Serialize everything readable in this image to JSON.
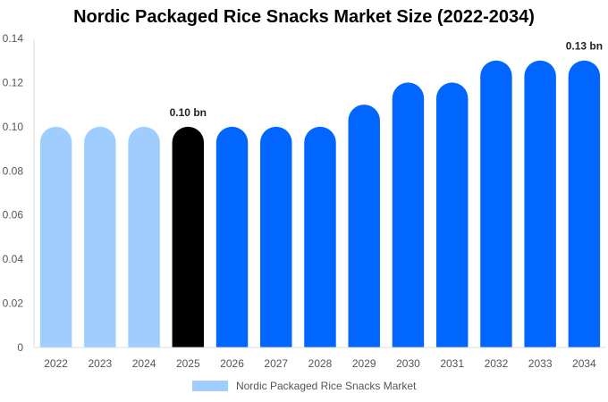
{
  "chart_data": {
    "type": "bar",
    "title": "Nordic Packaged Rice Snacks Market Size (2022-2034)",
    "xlabel": "",
    "ylabel": "",
    "categories": [
      "2022",
      "2023",
      "2024",
      "2025",
      "2026",
      "2027",
      "2028",
      "2029",
      "2030",
      "2031",
      "2032",
      "2033",
      "2034"
    ],
    "series": [
      {
        "name": "Nordic Packaged Rice Snacks Market",
        "values": [
          0.1,
          0.1,
          0.1,
          0.1,
          0.1,
          0.1,
          0.1,
          0.11,
          0.12,
          0.12,
          0.13,
          0.13,
          0.13
        ]
      }
    ],
    "ylim": [
      0,
      0.14
    ],
    "yticks": [
      "0",
      "0.02",
      "0.04",
      "0.06",
      "0.08",
      "0.10",
      "0.12",
      "0.14"
    ],
    "data_labels": [
      {
        "category": "2025",
        "text": "0.10 bn"
      },
      {
        "category": "2034",
        "text": "0.13 bn"
      }
    ],
    "colors": {
      "historical": "#9fcdfd",
      "current": "#000000",
      "forecast": "#0066ff"
    },
    "bar_color_groups": [
      "historical",
      "historical",
      "historical",
      "current",
      "forecast",
      "forecast",
      "forecast",
      "forecast",
      "forecast",
      "forecast",
      "forecast",
      "forecast",
      "forecast"
    ],
    "legend_position": "bottom",
    "grid": false
  }
}
